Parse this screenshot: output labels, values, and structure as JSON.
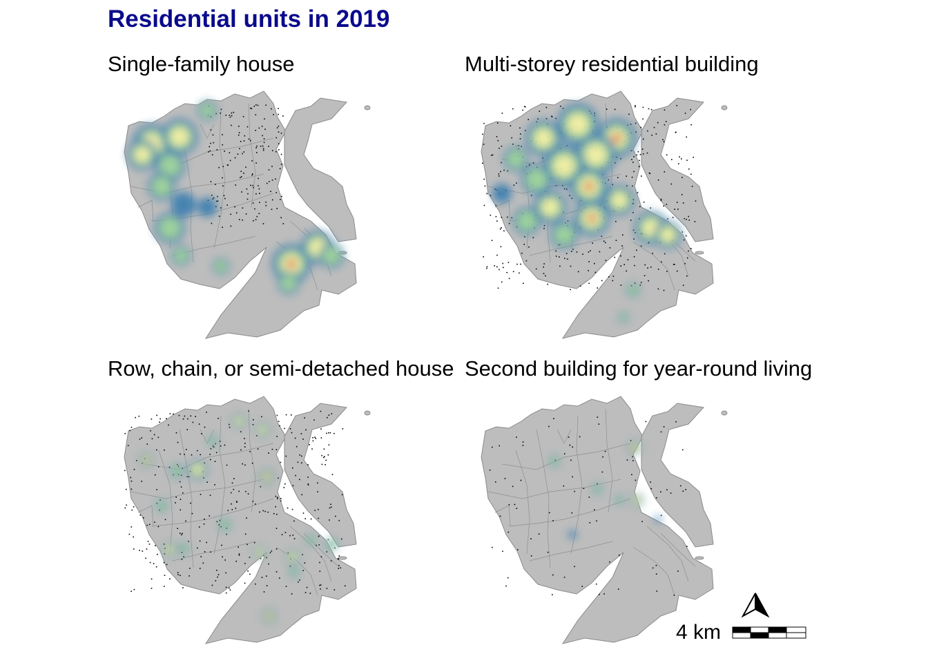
{
  "title": "Residential units in 2019",
  "panels": [
    {
      "label": "Single-family house",
      "density": "high-west"
    },
    {
      "label": "Multi-storey residential building",
      "density": "high-center"
    },
    {
      "label": "Row, chain, or semi-detached house",
      "density": "scattered"
    },
    {
      "label": "Second building for year-round living",
      "density": "sparse"
    }
  ],
  "scale_bar": {
    "label": "4 km"
  },
  "north_arrow": {
    "icon": "north-arrow-icon"
  },
  "colors": {
    "title": "#0a0a8c",
    "land": "#bdbdbd",
    "border": "#8a8a8a",
    "heat_low": "#3e7fb0",
    "heat_mid": "#9bd39a",
    "heat_high_mid": "#f4f2a2",
    "heat_high": "#e34a33"
  }
}
